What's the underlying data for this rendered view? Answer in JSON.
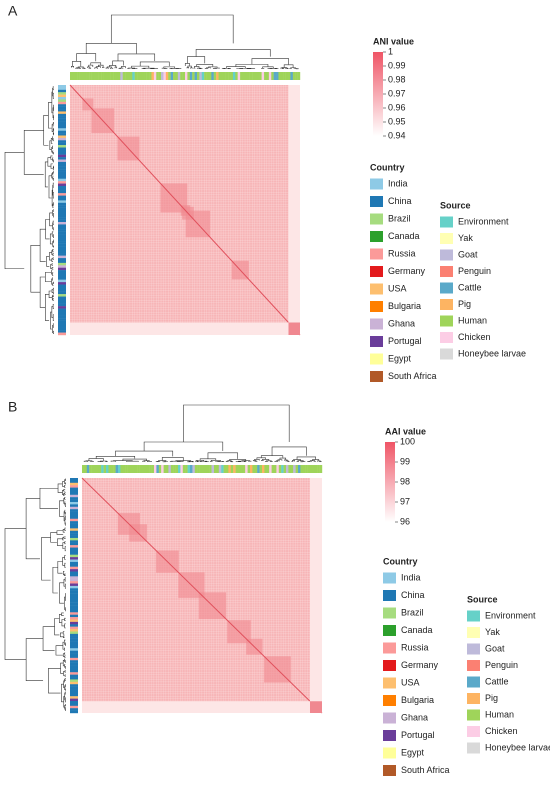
{
  "panels": [
    {
      "label": "A",
      "legend_title": "ANI value",
      "lim": [
        0.94,
        1
      ],
      "ticks": [
        1,
        0.99,
        0.98,
        0.97,
        0.96,
        0.95,
        0.94
      ]
    },
    {
      "label": "B",
      "legend_title": "AAI value",
      "lim": [
        96,
        100
      ],
      "ticks": [
        100,
        99,
        98,
        97,
        96
      ]
    }
  ],
  "country_legend": {
    "title": "Country",
    "items": [
      {
        "name": "India",
        "color": "#8ecae6"
      },
      {
        "name": "China",
        "color": "#1f78b4"
      },
      {
        "name": "Brazil",
        "color": "#a6dc7f"
      },
      {
        "name": "Canada",
        "color": "#2ca02c"
      },
      {
        "name": "Russia",
        "color": "#fb9a99"
      },
      {
        "name": "Germany",
        "color": "#e31a1c"
      },
      {
        "name": "USA",
        "color": "#fdbf6f"
      },
      {
        "name": "Bulgaria",
        "color": "#ff7f00"
      },
      {
        "name": "Ghana",
        "color": "#cab2d6"
      },
      {
        "name": "Portugal",
        "color": "#6a3d9a"
      },
      {
        "name": "Egypt",
        "color": "#ffff99"
      },
      {
        "name": "South Africa",
        "color": "#b15928"
      }
    ]
  },
  "source_legend": {
    "title": "Source",
    "items": [
      {
        "name": "Environment",
        "color": "#66d1c8"
      },
      {
        "name": "Yak",
        "color": "#ffffb3"
      },
      {
        "name": "Goat",
        "color": "#bebada"
      },
      {
        "name": "Penguin",
        "color": "#fb8072"
      },
      {
        "name": "Cattle",
        "color": "#5aa9c9"
      },
      {
        "name": "Pig",
        "color": "#fdb462"
      },
      {
        "name": "Human",
        "color": "#9fd45a"
      },
      {
        "name": "Chicken",
        "color": "#fccde5"
      },
      {
        "name": "Honeybee larvae",
        "color": "#d9d9d9"
      }
    ]
  }
}
